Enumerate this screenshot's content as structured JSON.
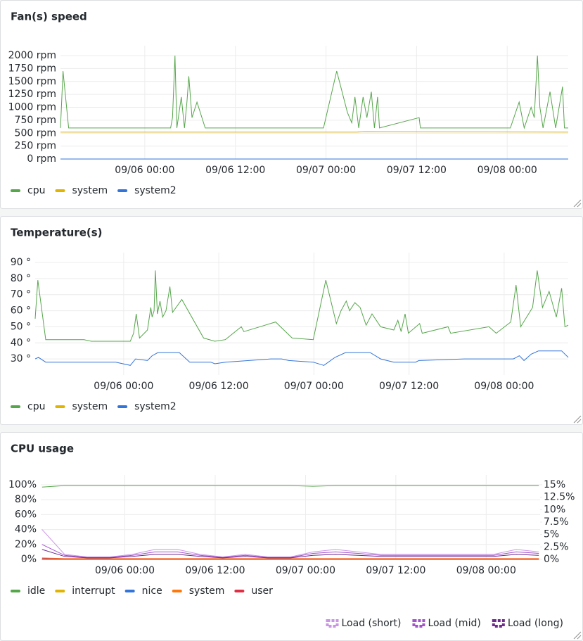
{
  "chart_data": [
    {
      "type": "line",
      "title": "Fan(s) speed",
      "legend": "bottom",
      "xlim": [
        "09/05 12:50",
        "09/08 08:05"
      ],
      "xticks": [
        "09/06 00:00",
        "09/06 12:00",
        "09/07 00:00",
        "09/07 12:00",
        "09/08 00:00"
      ],
      "ylim": [
        0,
        2000
      ],
      "yticks": [
        {
          "value": 0,
          "label": "0 rpm"
        },
        {
          "value": 250,
          "label": "250 rpm"
        },
        {
          "value": 500,
          "label": "500 rpm"
        },
        {
          "value": 750,
          "label": "750 rpm"
        },
        {
          "value": 1000,
          "label": "1000 rpm"
        },
        {
          "value": 1250,
          "label": "1250 rpm"
        },
        {
          "value": 1500,
          "label": "1500 rpm"
        },
        {
          "value": 1750,
          "label": "1750 rpm"
        },
        {
          "value": 2000,
          "label": "2000 rpm"
        }
      ],
      "grid": true,
      "series": [
        {
          "name": "cpu",
          "color": "#56a64b",
          "x": [
            "09/05 12:50",
            "09/05 13:10",
            "09/05 13:55",
            "09/06 03:25",
            "09/06 03:40",
            "09/06 04:00",
            "09/06 04:15",
            "09/06 04:50",
            "09/06 05:15",
            "09/06 05:35",
            "09/06 05:50",
            "09/06 06:15",
            "09/06 06:55",
            "09/06 08:00",
            "09/06 23:40",
            "09/07 01:25",
            "09/07 02:50",
            "09/07 03:25",
            "09/07 03:50",
            "09/07 04:20",
            "09/07 04:55",
            "09/07 05:25",
            "09/07 06:00",
            "09/07 06:25",
            "09/07 06:50",
            "09/07 07:05",
            "09/07 12:20",
            "09/07 12:30",
            "09/08 00:25",
            "09/08 01:35",
            "09/08 02:15",
            "09/08 03:10",
            "09/08 03:35",
            "09/08 04:00",
            "09/08 04:20",
            "09/08 04:45",
            "09/08 05:40",
            "09/08 06:25",
            "09/08 07:20",
            "09/08 07:35",
            "09/08 08:05"
          ],
          "values": [
            600,
            1700,
            600,
            600,
            800,
            2000,
            600,
            1200,
            600,
            1100,
            1600,
            800,
            1100,
            600,
            600,
            1700,
            900,
            700,
            1200,
            600,
            1200,
            800,
            1300,
            600,
            1200,
            600,
            800,
            600,
            600,
            1100,
            600,
            1000,
            800,
            2000,
            1000,
            600,
            1300,
            600,
            1400,
            600,
            600
          ]
        },
        {
          "name": "system",
          "color": "#e0b400",
          "x": [
            "09/05 12:50",
            "09/07 04:00",
            "09/07 05:00",
            "09/08 08:05"
          ],
          "values": [
            520,
            520,
            530,
            520
          ]
        },
        {
          "name": "system2",
          "color": "#3274d9",
          "x": [
            "09/05 12:50",
            "09/08 08:05"
          ],
          "values": [
            0,
            0
          ]
        }
      ]
    },
    {
      "type": "line",
      "title": "Temperature(s)",
      "legend": "bottom",
      "xlim": [
        "09/05 12:50",
        "09/08 08:05"
      ],
      "xticks": [
        "09/06 00:00",
        "09/06 12:00",
        "09/07 00:00",
        "09/07 12:00",
        "09/08 00:00"
      ],
      "ylim": [
        20,
        90
      ],
      "yticks": [
        {
          "value": 30,
          "label": "30 °"
        },
        {
          "value": 40,
          "label": "40 °"
        },
        {
          "value": 50,
          "label": "50 °"
        },
        {
          "value": 60,
          "label": "60 °"
        },
        {
          "value": 70,
          "label": "70 °"
        },
        {
          "value": 80,
          "label": "80 °"
        },
        {
          "value": 90,
          "label": "90 °"
        }
      ],
      "grid": true,
      "series": [
        {
          "name": "cpu",
          "color": "#56a64b",
          "x": [
            "09/05 12:50",
            "09/05 13:10",
            "09/05 14:10",
            "09/05 19:00",
            "09/05 19:55",
            "09/06 00:50",
            "09/06 01:15",
            "09/06 01:35",
            "09/06 02:00",
            "09/06 03:00",
            "09/06 03:25",
            "09/06 03:35",
            "09/06 03:50",
            "09/06 04:00",
            "09/06 04:15",
            "09/06 04:35",
            "09/06 04:55",
            "09/06 05:20",
            "09/06 05:50",
            "09/06 06:10",
            "09/06 07:20",
            "09/06 10:05",
            "09/06 11:30",
            "09/06 12:50",
            "09/06 14:50",
            "09/06 15:10",
            "09/06 19:10",
            "09/06 19:35",
            "09/06 21:15",
            "09/06 23:55",
            "09/07 01:30",
            "09/07 02:50",
            "09/07 03:25",
            "09/07 04:05",
            "09/07 04:30",
            "09/07 05:10",
            "09/07 05:50",
            "09/07 06:35",
            "09/07 07:20",
            "09/07 08:25",
            "09/07 10:05",
            "09/07 10:35",
            "09/07 11:00",
            "09/07 11:30",
            "09/07 11:55",
            "09/07 13:20",
            "09/07 13:40",
            "09/07 16:55",
            "09/07 17:15",
            "09/07 22:05",
            "09/07 23:00",
            "09/08 00:50",
            "09/08 01:30",
            "09/08 02:05",
            "09/08 03:35",
            "09/08 04:10",
            "09/08 04:50",
            "09/08 05:40",
            "09/08 06:35",
            "09/08 07:15",
            "09/08 07:40",
            "09/08 08:05"
          ],
          "values": [
            55,
            79,
            42,
            42,
            41,
            41,
            46,
            58,
            43,
            48,
            62,
            56,
            60,
            85,
            58,
            66,
            56,
            60,
            75,
            59,
            67,
            43,
            41,
            42,
            50,
            47,
            53,
            51,
            43,
            42,
            79,
            52,
            60,
            66,
            60,
            65,
            62,
            51,
            58,
            50,
            48,
            54,
            47,
            58,
            46,
            52,
            46,
            50,
            46,
            50,
            46,
            53,
            76,
            50,
            62,
            85,
            62,
            72,
            56,
            74,
            50,
            51
          ]
        },
        {
          "name": "system",
          "color": "#e0b400",
          "x": [],
          "values": []
        },
        {
          "name": "system2",
          "color": "#3274d9",
          "x": [
            "09/05 12:50",
            "09/05 13:15",
            "09/05 14:10",
            "09/05 23:00",
            "09/06 00:50",
            "09/06 01:30",
            "09/06 03:00",
            "09/06 03:35",
            "09/06 04:20",
            "09/06 07:00",
            "09/06 08:20",
            "09/06 11:00",
            "09/06 11:30",
            "09/06 12:50",
            "09/06 18:35",
            "09/06 19:55",
            "09/06 20:50",
            "09/06 23:55",
            "09/07 01:15",
            "09/07 02:40",
            "09/07 04:00",
            "09/07 07:05",
            "09/07 08:25",
            "09/07 10:05",
            "09/07 12:50",
            "09/07 13:15",
            "09/07 19:00",
            "09/08 01:10",
            "09/08 01:55",
            "09/08 02:30",
            "09/08 03:25",
            "09/08 04:20",
            "09/08 07:15",
            "09/08 08:05"
          ],
          "values": [
            30,
            31,
            28,
            28,
            26,
            30,
            29,
            32,
            34,
            34,
            28,
            28,
            27,
            28,
            30,
            30,
            29,
            28,
            26,
            31,
            34,
            34,
            30,
            28,
            28,
            29,
            30,
            30,
            32,
            29,
            33,
            35,
            35,
            31
          ]
        }
      ]
    },
    {
      "type": "line",
      "title": "CPU usage",
      "legend": "bottom",
      "xlim": [
        "09/05 12:50",
        "09/08 07:10"
      ],
      "xticks": [
        "09/06 00:00",
        "09/06 12:00",
        "09/07 00:00",
        "09/07 12:00",
        "09/08 00:00"
      ],
      "ylim": [
        0,
        100
      ],
      "yticks": [
        {
          "value": 0,
          "label": "0%"
        },
        {
          "value": 20,
          "label": "20%"
        },
        {
          "value": 40,
          "label": "40%"
        },
        {
          "value": 60,
          "label": "60%"
        },
        {
          "value": 80,
          "label": "80%"
        },
        {
          "value": 100,
          "label": "100%"
        }
      ],
      "y2lim": [
        0,
        15
      ],
      "y2ticks": [
        {
          "value": 0,
          "label": "0%"
        },
        {
          "value": 2.5,
          "label": "2.5%"
        },
        {
          "value": 5,
          "label": "5%"
        },
        {
          "value": 7.5,
          "label": "7.5%"
        },
        {
          "value": 10,
          "label": "10%"
        },
        {
          "value": 12.5,
          "label": "12.5%"
        },
        {
          "value": 15,
          "label": "15%"
        }
      ],
      "grid": true,
      "x": [
        "09/05 13:00",
        "09/05 16:00",
        "09/05 19:00",
        "09/05 22:00",
        "09/06 01:00",
        "09/06 04:00",
        "09/06 07:00",
        "09/06 10:00",
        "09/06 13:00",
        "09/06 16:00",
        "09/06 19:00",
        "09/06 22:00",
        "09/07 01:00",
        "09/07 04:00",
        "09/07 07:00",
        "09/07 10:00",
        "09/07 13:00",
        "09/07 16:00",
        "09/07 19:00",
        "09/07 22:00",
        "09/08 01:00",
        "09/08 04:00",
        "09/08 07:00"
      ],
      "series": [
        {
          "name": "idle",
          "color": "#56a64b",
          "values": [
            97,
            99,
            99,
            99,
            99,
            99,
            99,
            99,
            99,
            99,
            99,
            99,
            98,
            99,
            99,
            99,
            99,
            99,
            99,
            99,
            99,
            99,
            99
          ]
        },
        {
          "name": "interrupt",
          "color": "#e0b400",
          "values": [
            0,
            0,
            0,
            0,
            0,
            0,
            0,
            0,
            0,
            0,
            0,
            0,
            0,
            0,
            0,
            0,
            0,
            0,
            0,
            0,
            0,
            0,
            0
          ]
        },
        {
          "name": "nice",
          "color": "#3274d9",
          "values": [
            0,
            0,
            0,
            0,
            0,
            0,
            0,
            0,
            0,
            0,
            0,
            0,
            0,
            0,
            0,
            0,
            0,
            0,
            0,
            0,
            0,
            0,
            0
          ]
        },
        {
          "name": "system",
          "color": "#ff780a",
          "values": [
            2,
            1,
            1,
            1,
            1,
            1,
            1,
            1,
            1,
            1,
            1,
            1,
            1,
            1,
            1,
            1,
            1,
            1,
            1,
            1,
            1,
            1,
            1
          ]
        },
        {
          "name": "user",
          "color": "#e02f44",
          "values": [
            1,
            0.5,
            0.5,
            0.5,
            0.5,
            0.5,
            0.5,
            0.5,
            0.5,
            0.5,
            0.5,
            0.5,
            0.5,
            0.5,
            0.5,
            0.5,
            0.5,
            0.5,
            0.5,
            0.5,
            0.5,
            0.5,
            0.5
          ]
        },
        {
          "name": "Load (short)",
          "color": "#ca95e5",
          "axis": "y2",
          "values": [
            6,
            1,
            0.5,
            0.5,
            1,
            2,
            2,
            1,
            0.5,
            1,
            0.5,
            0.5,
            1.5,
            2,
            1.5,
            1,
            1,
            1,
            1,
            1,
            1,
            2,
            1.5
          ]
        },
        {
          "name": "Load (mid)",
          "color": "#a352cc",
          "axis": "y2",
          "values": [
            3,
            0.8,
            0.4,
            0.4,
            0.8,
            1.5,
            1.5,
            0.8,
            0.4,
            0.8,
            0.4,
            0.4,
            1.2,
            1.5,
            1.2,
            0.8,
            0.8,
            0.8,
            0.8,
            0.8,
            0.8,
            1.5,
            1.2
          ]
        },
        {
          "name": "Load (long)",
          "color": "#6e2a8c",
          "axis": "y2",
          "values": [
            2,
            0.6,
            0.3,
            0.3,
            0.6,
            1,
            1,
            0.6,
            0.3,
            0.6,
            0.3,
            0.3,
            0.8,
            1,
            0.8,
            0.6,
            0.6,
            0.6,
            0.6,
            0.6,
            0.6,
            1,
            0.8
          ]
        }
      ]
    }
  ]
}
